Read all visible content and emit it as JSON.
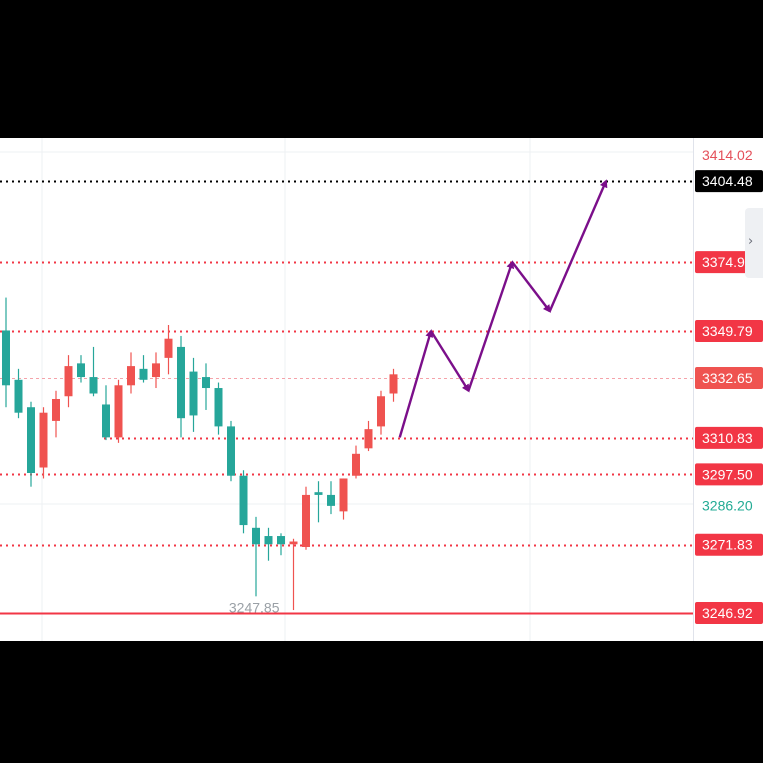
{
  "chart_data": {
    "type": "candlestick",
    "ylim": [
      3240,
      3420
    ],
    "colors": {
      "up": "#ef5350",
      "down": "#26a69a",
      "level_line": "#f23645",
      "target_line": "#000000",
      "arrow": "#7b0f8a",
      "grid": "#eef0f3",
      "axis_red_text": "#e4505a",
      "axis_green_text": "#22ab94",
      "label_gray": "#9aa0a6"
    },
    "candles": [
      {
        "o": 3350,
        "h": 3362,
        "l": 3322,
        "c": 3330
      },
      {
        "o": 3332,
        "h": 3336,
        "l": 3318,
        "c": 3320
      },
      {
        "o": 3322,
        "h": 3324,
        "l": 3293,
        "c": 3298
      },
      {
        "o": 3300,
        "h": 3322,
        "l": 3296,
        "c": 3320
      },
      {
        "o": 3317,
        "h": 3328,
        "l": 3311,
        "c": 3325
      },
      {
        "o": 3326,
        "h": 3341,
        "l": 3322,
        "c": 3337
      },
      {
        "o": 3338,
        "h": 3341,
        "l": 3331,
        "c": 3333
      },
      {
        "o": 3333,
        "h": 3344,
        "l": 3326,
        "c": 3327
      },
      {
        "o": 3323,
        "h": 3330,
        "l": 3310,
        "c": 3311
      },
      {
        "o": 3311,
        "h": 3332,
        "l": 3309,
        "c": 3330
      },
      {
        "o": 3330,
        "h": 3342,
        "l": 3327,
        "c": 3337
      },
      {
        "o": 3336,
        "h": 3341,
        "l": 3331,
        "c": 3332
      },
      {
        "o": 3333,
        "h": 3342,
        "l": 3329,
        "c": 3338
      },
      {
        "o": 3340,
        "h": 3352,
        "l": 3334,
        "c": 3347
      },
      {
        "o": 3344,
        "h": 3348,
        "l": 3311,
        "c": 3318
      },
      {
        "o": 3335,
        "h": 3340,
        "l": 3313,
        "c": 3319
      },
      {
        "o": 3333,
        "h": 3338,
        "l": 3321,
        "c": 3329
      },
      {
        "o": 3329,
        "h": 3331,
        "l": 3312,
        "c": 3315
      },
      {
        "o": 3315,
        "h": 3317,
        "l": 3295,
        "c": 3297
      },
      {
        "o": 3297,
        "h": 3299,
        "l": 3276,
        "c": 3279
      },
      {
        "o": 3278,
        "h": 3282,
        "l": 3253,
        "c": 3272
      },
      {
        "o": 3275,
        "h": 3278,
        "l": 3266,
        "c": 3272
      },
      {
        "o": 3275,
        "h": 3276,
        "l": 3268,
        "c": 3272
      },
      {
        "o": 3272,
        "h": 3274,
        "l": 3248,
        "c": 3273
      },
      {
        "o": 3271,
        "h": 3293,
        "l": 3270,
        "c": 3290
      },
      {
        "o": 3291,
        "h": 3295,
        "l": 3280,
        "c": 3290
      },
      {
        "o": 3290,
        "h": 3295,
        "l": 3283,
        "c": 3286
      },
      {
        "o": 3284,
        "h": 3296,
        "l": 3281,
        "c": 3296
      },
      {
        "o": 3297,
        "h": 3308,
        "l": 3296,
        "c": 3305
      },
      {
        "o": 3307,
        "h": 3317,
        "l": 3306,
        "c": 3314
      },
      {
        "o": 3315,
        "h": 3328,
        "l": 3312,
        "c": 3326
      },
      {
        "o": 3327,
        "h": 3336,
        "l": 3324,
        "c": 3334
      }
    ],
    "levels": [
      {
        "price": 3404.48,
        "label": "3404.48",
        "style": "target"
      },
      {
        "price": 3374.93,
        "label": "3374.93",
        "style": "resistance"
      },
      {
        "price": 3349.79,
        "label": "3349.79",
        "style": "resistance"
      },
      {
        "price": 3310.83,
        "label": "3310.83",
        "style": "support"
      },
      {
        "price": 3297.5,
        "label": "3297.50",
        "style": "support"
      },
      {
        "price": 3271.83,
        "label": "3271.83",
        "style": "support"
      },
      {
        "price": 3246.92,
        "label": "3246.92",
        "style": "solid"
      }
    ],
    "axis_labels": [
      {
        "price": 3414.02,
        "label": "3414.02",
        "color": "red"
      },
      {
        "price": 3286.2,
        "label": "3286.20",
        "color": "green"
      }
    ],
    "current_price": {
      "price": 3332.65,
      "label": "3332.65"
    },
    "low_annotation": {
      "price": 3247.85,
      "label": "3247.85"
    },
    "forecast_path": [
      {
        "i": 31.5,
        "p": 3311
      },
      {
        "i": 34,
        "p": 3349.79
      },
      {
        "i": 37,
        "p": 3328
      },
      {
        "i": 40.5,
        "p": 3374.93
      },
      {
        "i": 43.5,
        "p": 3357
      },
      {
        "i": 48,
        "p": 3404.48
      }
    ]
  }
}
